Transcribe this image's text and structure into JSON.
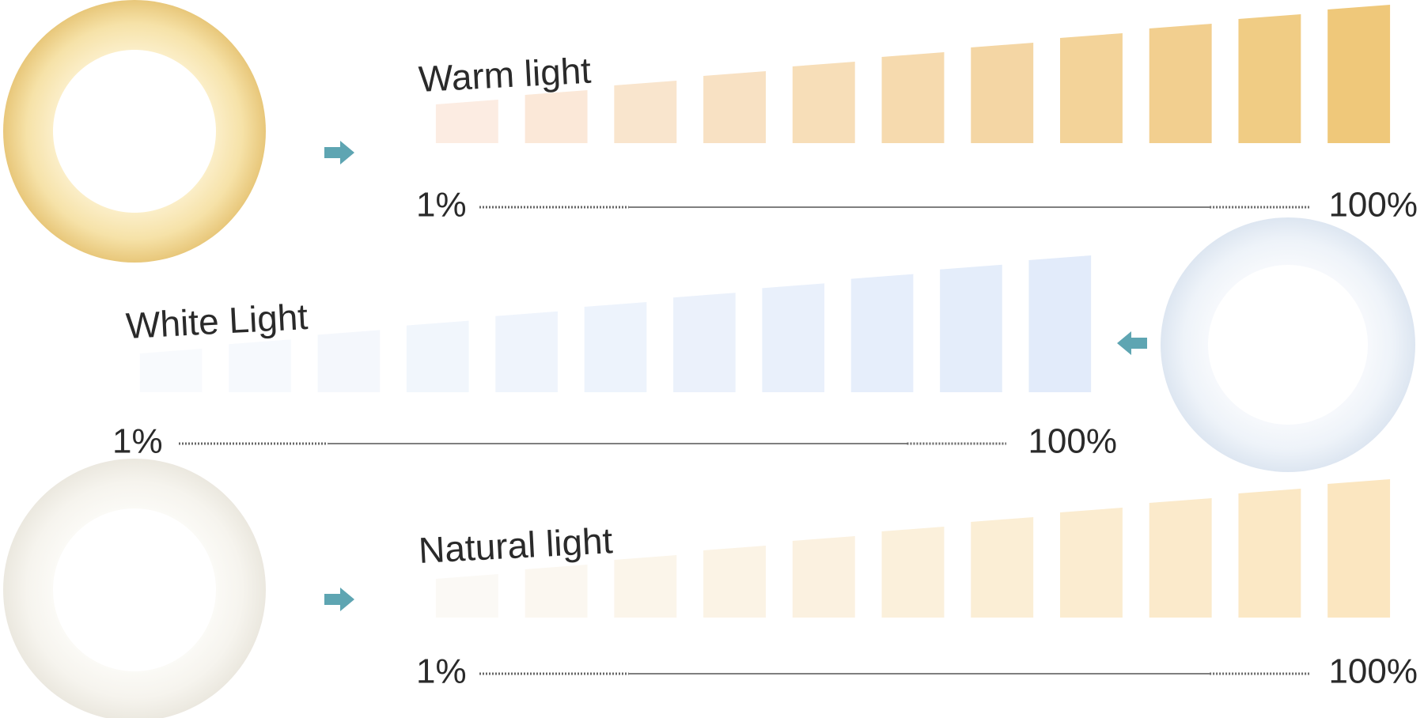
{
  "sections": [
    {
      "title": "Warm light",
      "min_label": "1%",
      "max_label": "100%"
    },
    {
      "title": "White Light",
      "min_label": "1%",
      "max_label": "100%"
    },
    {
      "title": "Natural light",
      "min_label": "1%",
      "max_label": "100%"
    }
  ]
}
